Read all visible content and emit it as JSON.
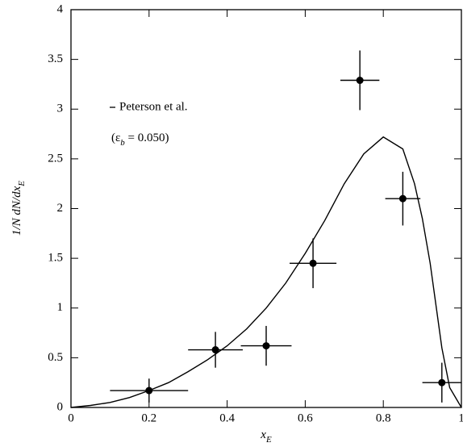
{
  "chart_data": {
    "type": "scatter",
    "xlabel": {
      "main": "x",
      "sub": "E"
    },
    "ylabel": {
      "main": "1/N dN/dx",
      "sub": "E"
    },
    "annotation": {
      "pre": "(ε",
      "sub": "b",
      "post": " = 0.050)"
    },
    "xlim": [
      0,
      1
    ],
    "ylim": [
      0,
      4
    ],
    "xticks": [
      0,
      0.2,
      0.4,
      0.6,
      0.8,
      1
    ],
    "yticks": [
      0,
      0.5,
      1,
      1.5,
      2,
      2.5,
      3,
      3.5,
      4
    ],
    "series": [
      {
        "name": "Peterson et al.",
        "type": "line",
        "color": "#000000",
        "x": [
          0,
          0.05,
          0.1,
          0.15,
          0.2,
          0.25,
          0.3,
          0.35,
          0.4,
          0.45,
          0.5,
          0.55,
          0.6,
          0.65,
          0.7,
          0.75,
          0.8,
          0.85,
          0.88,
          0.9,
          0.92,
          0.95,
          0.97,
          1
        ],
        "values": [
          0,
          0.02,
          0.05,
          0.1,
          0.17,
          0.25,
          0.36,
          0.48,
          0.62,
          0.79,
          1.0,
          1.25,
          1.55,
          1.88,
          2.25,
          2.55,
          2.72,
          2.6,
          2.25,
          1.9,
          1.45,
          0.6,
          0.2,
          0
        ]
      },
      {
        "type": "points",
        "color": "#000000",
        "x": [
          0.2,
          0.37,
          0.5,
          0.62,
          0.74,
          0.85,
          0.95
        ],
        "values": [
          0.17,
          0.58,
          0.62,
          1.45,
          3.29,
          2.1,
          0.25
        ],
        "xerr": [
          0.1,
          0.07,
          0.065,
          0.06,
          0.05,
          0.045,
          0.05
        ],
        "yerr": [
          0.12,
          0.18,
          0.2,
          0.25,
          0.3,
          0.27,
          0.2
        ]
      }
    ]
  }
}
